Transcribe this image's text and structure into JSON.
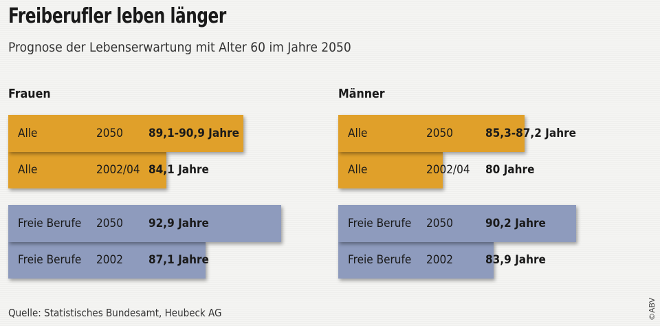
{
  "chart_data": {
    "type": "bar",
    "title": "Freiberufler leben länger",
    "subtitle": "Prognose der Lebenserwartung mit Alter 60 im Jahre 2050",
    "unit": "Jahre",
    "panels": [
      {
        "name": "Frauen",
        "rows": [
          {
            "group": "Alle",
            "year": "2050",
            "label": "89,1-90,9 Jahre",
            "value": 90.0,
            "color": "#e0a02a"
          },
          {
            "group": "Alle",
            "year": "2002/04",
            "label": "84,1 Jahre",
            "value": 84.1,
            "color": "#e0a02a"
          },
          {
            "group": "Freie Berufe",
            "year": "2050",
            "label": "92,9 Jahre",
            "value": 92.9,
            "color": "#8e9bbd"
          },
          {
            "group": "Freie Berufe",
            "year": "2002",
            "label": "87,1 Jahre",
            "value": 87.1,
            "color": "#8e9bbd"
          }
        ]
      },
      {
        "name": "Männer",
        "rows": [
          {
            "group": "Alle",
            "year": "2050",
            "label": "85,3-87,2 Jahre",
            "value": 86.25,
            "color": "#e0a02a"
          },
          {
            "group": "Alle",
            "year": "2002/04",
            "label": "80 Jahre",
            "value": 80.0,
            "color": "#e0a02a"
          },
          {
            "group": "Freie Berufe",
            "year": "2050",
            "label": "90,2 Jahre",
            "value": 90.2,
            "color": "#8e9bbd"
          },
          {
            "group": "Freie Berufe",
            "year": "2002",
            "label": "83,9 Jahre",
            "value": 83.9,
            "color": "#8e9bbd"
          }
        ]
      }
    ],
    "source": "Quelle: Statistisches Bundesamt, Heubeck AG",
    "credit": "©ABV"
  }
}
